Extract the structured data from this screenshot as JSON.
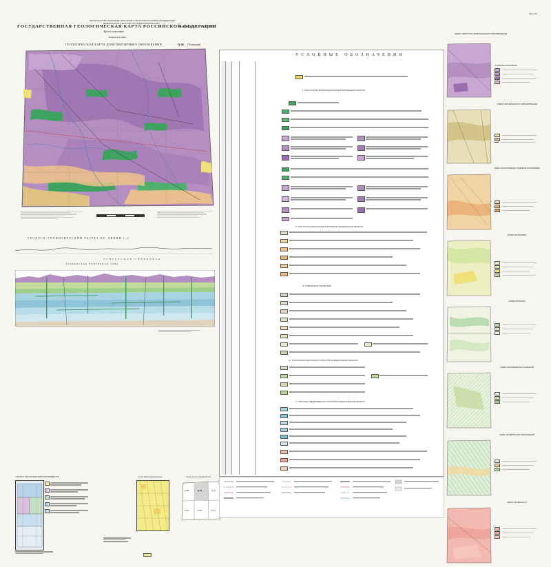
{
  "header": {
    "ministry_line1": "МИНИСТЕРСТВО ПРИРОДНЫХ РЕСУРСОВ И ЭКОЛОГИИ РОССИЙСКОЙ ФЕДЕРАЦИИ",
    "ministry_line2": "ФЕДЕРАЛЬНОЕ АГЕНТСТВО ПО НЕДРОПОЛЬЗОВАНИЮ",
    "main_title": "ГОСУДАРСТВЕННАЯ ГЕОЛОГИЧЕСКАЯ КАРТА РОССИЙСКОЙ ФЕДЕРАЦИИ",
    "scale_text": "масштаба 1 : 1 000 000",
    "generation": "Третье поколение",
    "series": "Норильская серия",
    "sheet_label": "Лист 1/2",
    "map_title": "ГЕОЛОГИЧЕСКАЯ КАРТА ДОЧЕТВЕРТИЧНЫХ ОБРАЗОВАНИЙ",
    "sheet_code": "Q-46",
    "sheet_name": "(Тутончаны)"
  },
  "legend": {
    "title": "УСЛОВНЫЕ ОБОЗНАЧЕНИЯ",
    "section_labels": [
      "I. ТУНГУССКАЯ ЭПИГЕРЦИНСКАЯ ВУЛКАНИЧЕСКАЯ ОБЛАСТЬ",
      "II. ТУНГУССКО-КАТАНГСКАЯ СТРУКТУРНО-ФАЦИАЛЬНАЯ ОБЛАСТЬ",
      "III. СИБИРСКАЯ ПЛАТФОРМА",
      "IV. ТУРУХАНСКО-НЕРУНСКАЯ СТРУКТУРНО-ФАЦИАЛЬНАЯ ОБЛАСТЬ",
      "V. ТУРУХАНО-ФЕДОРОВСКАЯ СТРУКТУРНО-ФАЦИАЛЬНАЯ ОБЛАСТЬ"
    ]
  },
  "section": {
    "title": "ГЕОЛОГО-ГЕОФИЗИЧЕСКИЙ РАЗРЕЗ ПО ЛИНИИ",
    "line_code": "I–I",
    "depression": "ТУНГУССКАЯ СИНЕКЛИЗА",
    "subdepression": "ДОЛБАНСКАЯ ПРОГИБНАЯ ЗОНА"
  },
  "bottom": {
    "inset1_title": "СХЕМА ГЕОЛОГИЧЕСКОЙ ИЗУЧЕННОСТИ",
    "inset2_title": "Схема корреляции разрезов",
    "inset3_title": "Схема расположения листов",
    "sheet_labels": [
      "Q-45",
      "Q-46",
      "Q-47",
      "P-45",
      "P-46",
      "P-47"
    ]
  },
  "right_column": {
    "scheme_titles": [
      "СХЕМА СТРУКТУРНО-ФОРМАЦИОННОГО РАЙОНИРОВАНИЯ",
      "СХЕМА ТЕКТОНИЧЕСКОГО РАЙОНИРОВАНИЯ",
      "СХЕМА РАСПОЛОЖЕНИЯ ПОЛЕЗНЫХ ИСКОПАЕМЫХ",
      "СХЕМА МАГМАТИЗМА",
      "СХЕМА ПРОГНОЗА",
      "СХЕМА ГЕОХИМИЧЕСКИХ АНОМАЛИЙ",
      "СХЕМА ЧЕТВЕРТИЧНЫХ ОБРАЗОВАНИЙ",
      "СХЕМА ИЗУЧЕННОСТИ"
    ]
  },
  "colors": {
    "map_purple": "#b58ec2",
    "map_purple_dark": "#9b6fae",
    "map_green": "#3fa360",
    "map_orange": "#efc38a",
    "map_yellow": "#f0e079",
    "section_blue": "#a8d3e3",
    "section_green": "#c4dba0",
    "pink": "#f3b8b0"
  }
}
